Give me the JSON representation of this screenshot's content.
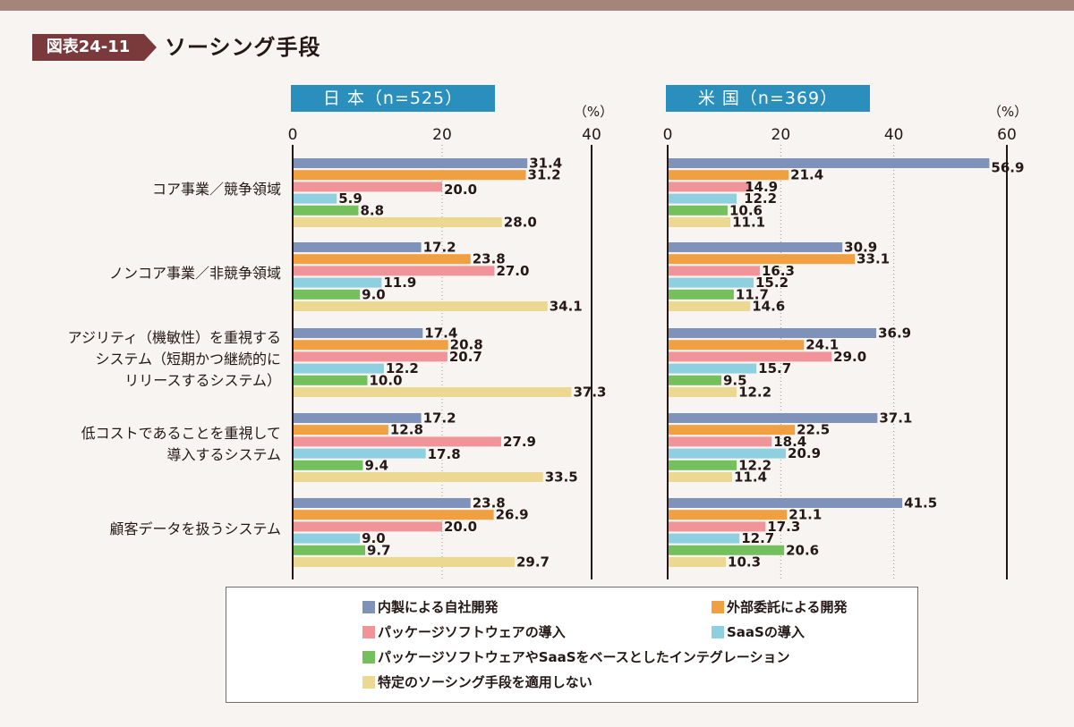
{
  "header": {
    "figure_label": "図表24-11",
    "title": "ソーシング手段"
  },
  "colors": {
    "series": [
      "#7f92ba",
      "#f0a040",
      "#f09499",
      "#8ecfe0",
      "#74c05c",
      "#ecd891"
    ]
  },
  "chart_data": [
    {
      "type": "bar",
      "orientation": "horizontal",
      "title": "日 本（n=525）",
      "unit_label": "（%）",
      "xlim": [
        0,
        40
      ],
      "ticks": [
        0,
        20,
        40
      ],
      "categories": [
        "コア事業／競争領域",
        "ノンコア事業／非競争領域",
        "アジリティ（機敏性）を重視する\nシステム（短期かつ継続的に\nリリースするシステム）",
        "低コストであることを重視して\n導入するシステム",
        "顧客データを扱うシステム"
      ],
      "series": [
        {
          "name": "内製による自社開発",
          "values": [
            31.4,
            17.2,
            17.4,
            17.2,
            23.8
          ]
        },
        {
          "name": "外部委託による開発",
          "values": [
            31.2,
            23.8,
            20.8,
            12.8,
            26.9
          ]
        },
        {
          "name": "パッケージソフトウェアの導入",
          "values": [
            20.0,
            27.0,
            20.7,
            27.9,
            20.0
          ]
        },
        {
          "name": "SaaSの導入",
          "values": [
            5.9,
            11.9,
            12.2,
            17.8,
            9.0
          ]
        },
        {
          "name": "パッケージソフトウェアやSaaSをベースとしたインテグレーション",
          "values": [
            8.8,
            9.0,
            10.0,
            9.4,
            9.7
          ]
        },
        {
          "name": "特定のソーシング手段を適用しない",
          "values": [
            28.0,
            34.1,
            37.3,
            33.5,
            29.7
          ]
        }
      ]
    },
    {
      "type": "bar",
      "orientation": "horizontal",
      "title": "米 国（n=369）",
      "unit_label": "（%）",
      "xlim": [
        0,
        60
      ],
      "ticks": [
        0,
        20,
        40,
        60
      ],
      "categories": [
        "コア事業／競争領域",
        "ノンコア事業／非競争領域",
        "アジリティ（機敏性）を重視する\nシステム（短期かつ継続的に\nリリースするシステム）",
        "低コストであることを重視して\n導入するシステム",
        "顧客データを扱うシステム"
      ],
      "series": [
        {
          "name": "内製による自社開発",
          "values": [
            56.9,
            30.9,
            36.9,
            37.1,
            41.5
          ]
        },
        {
          "name": "外部委託による開発",
          "values": [
            21.4,
            33.1,
            24.1,
            22.5,
            21.1
          ]
        },
        {
          "name": "パッケージソフトウェアの導入",
          "values": [
            14.9,
            16.3,
            29.0,
            18.4,
            17.3
          ]
        },
        {
          "name": "SaaSの導入",
          "values": [
            12.2,
            15.2,
            15.7,
            20.9,
            12.7
          ]
        },
        {
          "name": "パッケージソフトウェアやSaaSをベースとしたインテグレーション",
          "values": [
            10.6,
            11.7,
            9.5,
            12.2,
            20.6
          ]
        },
        {
          "name": "特定のソーシング手段を適用しない",
          "values": [
            11.1,
            14.6,
            12.2,
            11.4,
            10.3
          ]
        }
      ]
    }
  ],
  "legend": {
    "items": [
      "内製による自社開発",
      "外部委託による開発",
      "パッケージソフトウェアの導入",
      "SaaSの導入",
      "パッケージソフトウェアやSaaSをベースとしたインテグレーション",
      "特定のソーシング手段を適用しない"
    ]
  }
}
